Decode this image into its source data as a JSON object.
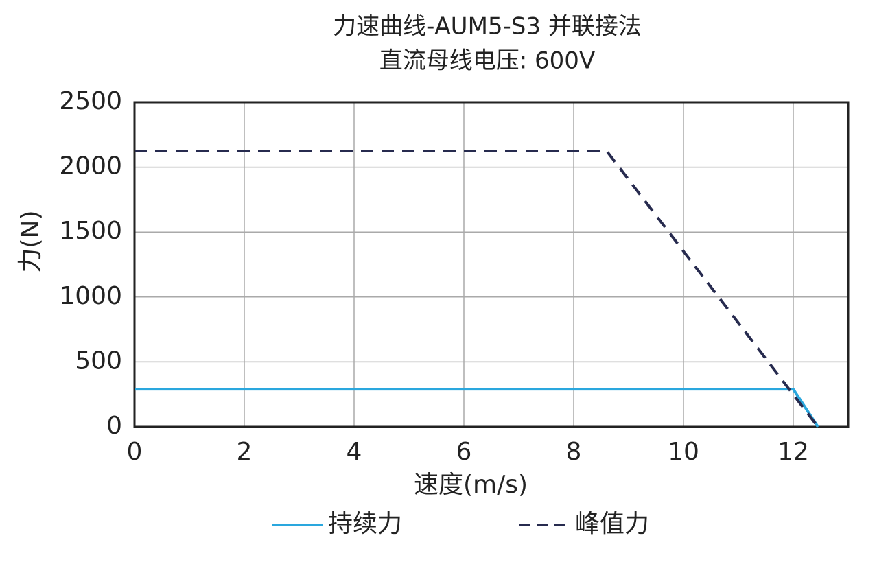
{
  "chart_data": {
    "type": "line",
    "title": "力速曲线-AUM5-S3 并联接法",
    "subtitle": "直流母线电压: 600V",
    "x_label": "速度(m/s)",
    "y_label": "力(N)",
    "xlim": [
      0,
      13
    ],
    "xticks": [
      0,
      2,
      4,
      6,
      8,
      10,
      12
    ],
    "ylim": [
      0,
      2500
    ],
    "yticks": [
      0,
      500,
      1000,
      1500,
      2000,
      2500
    ],
    "grid": true,
    "legend": "bottom",
    "series": [
      {
        "name": "持续力",
        "color": "#2aa7de",
        "style": "solid",
        "x": [
          0,
          12,
          12.45
        ],
        "values": [
          290,
          290,
          0
        ]
      },
      {
        "name": "峰值力",
        "color": "#272b4f",
        "style": "dashed",
        "x": [
          0,
          8.6,
          12.45
        ],
        "values": [
          2125,
          2125,
          0
        ]
      }
    ]
  }
}
